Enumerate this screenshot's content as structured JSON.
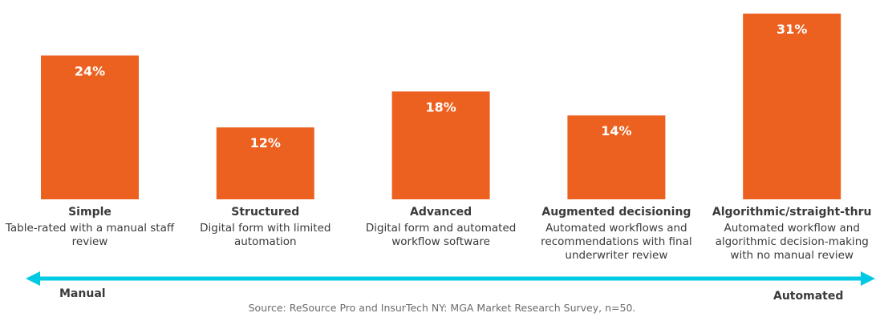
{
  "chart_data": {
    "type": "bar",
    "title": "",
    "xlabel": "",
    "ylabel": "",
    "ylim": [
      0,
      31
    ],
    "grid": false,
    "legend": "none",
    "categories": [
      "Simple",
      "Structured",
      "Advanced",
      "Augmented decisioning",
      "Algorithmic/straight-thru"
    ],
    "descriptions": [
      [
        "Table-rated with a manual staff",
        "review"
      ],
      [
        "Digital form with limited",
        "automation"
      ],
      [
        "Digital form and automated",
        "workflow software"
      ],
      [
        "Automated workflows and",
        "recommendations with final",
        "underwriter review"
      ],
      [
        "Automated workflow and",
        "algorithmic decision-making",
        "with no manual review"
      ]
    ],
    "values": [
      24,
      12,
      18,
      14,
      31
    ],
    "value_labels": [
      "24%",
      "12%",
      "18%",
      "14%",
      "31%"
    ],
    "unit": "%",
    "bar_color": "#ED6120",
    "axis_arrow": {
      "left_label": "Manual",
      "right_label": "Automated",
      "color": "#00C9E4",
      "direction": "bidirectional"
    },
    "source": "Source: ReSource Pro and InsurTech NY: MGA Market Research Survey, n=50."
  }
}
